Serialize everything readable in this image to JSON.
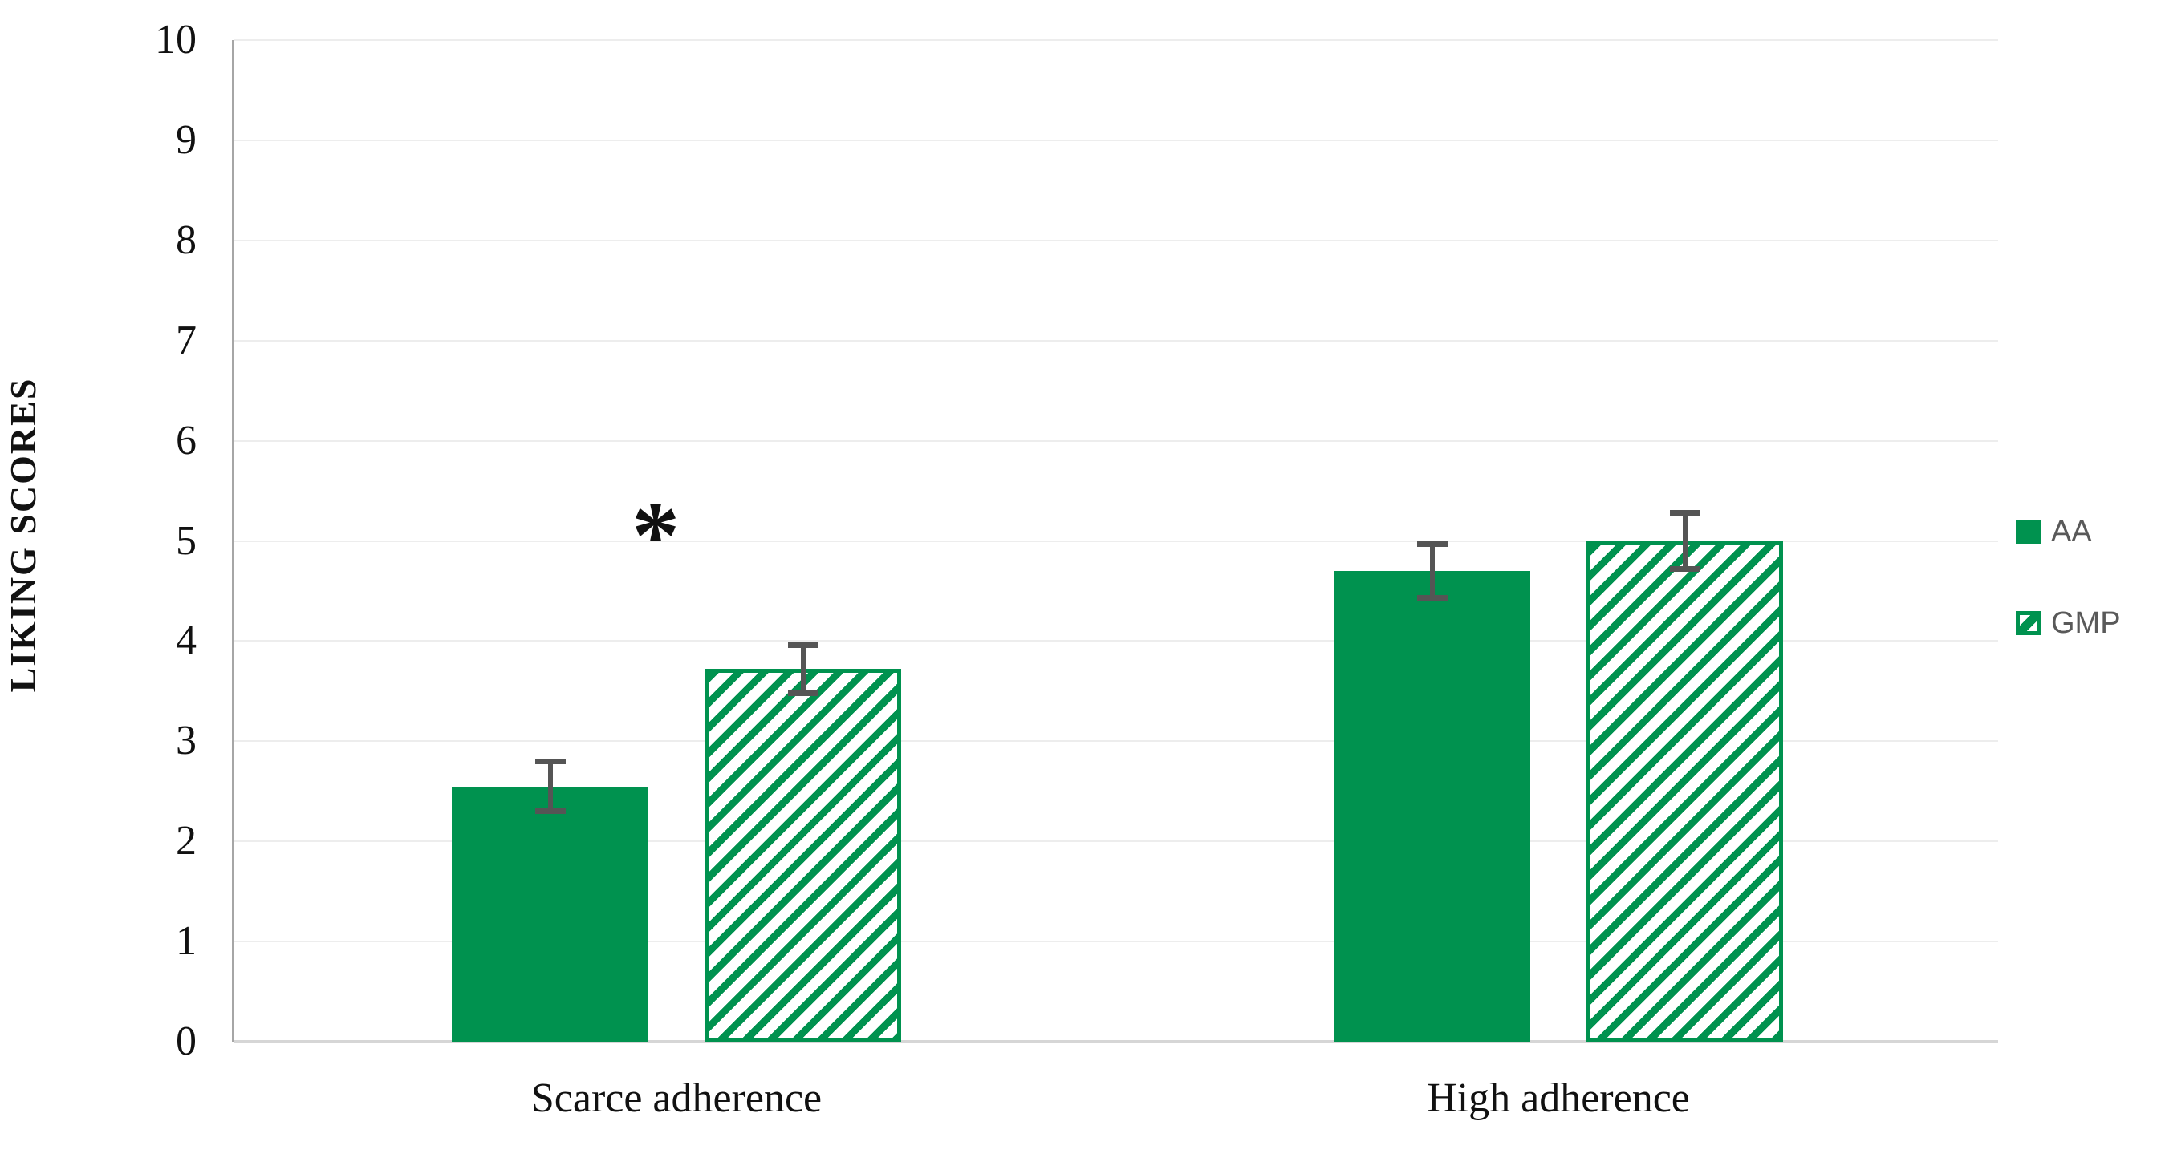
{
  "chart_data": {
    "type": "bar",
    "title": "",
    "xlabel": "",
    "ylabel": "LIKING SCORES",
    "ylim": [
      0,
      10
    ],
    "yticks": [
      0,
      1,
      2,
      3,
      4,
      5,
      6,
      7,
      8,
      9,
      10
    ],
    "grid": true,
    "legend_position": "right",
    "categories": [
      "Scarce adherence",
      "High adherence"
    ],
    "series": [
      {
        "name": "AA",
        "style": "solid",
        "values": [
          2.55,
          4.7
        ],
        "errors": [
          0.25,
          0.27
        ]
      },
      {
        "name": "GMP",
        "style": "hatched",
        "values": [
          3.72,
          5.0
        ],
        "errors": [
          0.24,
          0.28
        ]
      }
    ],
    "annotations": [
      {
        "text": "*",
        "category_index": 0,
        "value": 5.2
      }
    ],
    "colors": {
      "bar_green": "#00924F",
      "error_bar": "#555555",
      "gridline": "#ededed",
      "axis_line": "#a6a6a6",
      "baseline": "#d6d6d6",
      "axis_text": "#111111",
      "legend_text": "#595959"
    }
  }
}
